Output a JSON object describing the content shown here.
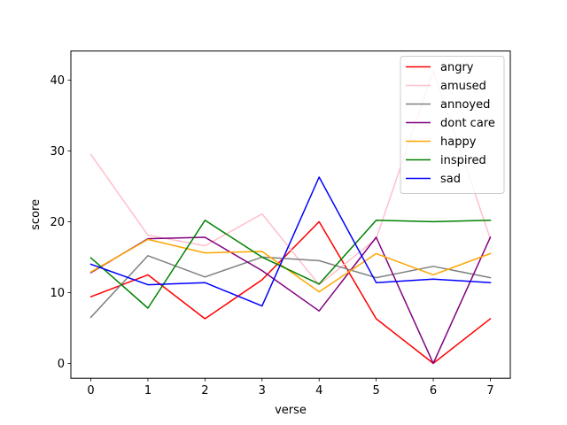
{
  "chart_data": {
    "type": "line",
    "title": "",
    "xlabel": "verse",
    "ylabel": "score",
    "x": [
      0,
      1,
      2,
      3,
      4,
      5,
      6,
      7
    ],
    "xlim": [
      -0.35,
      7.35
    ],
    "ylim": [
      -2.1,
      44.1
    ],
    "xticks": [
      0,
      1,
      2,
      3,
      4,
      5,
      6,
      7
    ],
    "yticks": [
      0,
      10,
      20,
      30,
      40
    ],
    "grid": false,
    "legend_position": "top-right",
    "series": [
      {
        "name": "angry",
        "color": "#ff0000",
        "values": [
          9.4,
          12.5,
          6.3,
          11.8,
          20.0,
          6.3,
          0.0,
          6.3
        ]
      },
      {
        "name": "amused",
        "color": "#ffc0cb",
        "values": [
          29.5,
          18.1,
          16.6,
          21.1,
          11.1,
          17.6,
          41.3,
          17.6
        ]
      },
      {
        "name": "annoyed",
        "color": "#808080",
        "values": [
          6.5,
          15.2,
          12.2,
          15.0,
          14.5,
          12.1,
          13.7,
          12.1
        ]
      },
      {
        "name": "dont care",
        "color": "#800080",
        "values": [
          12.8,
          17.6,
          17.8,
          13.1,
          7.4,
          17.8,
          0.0,
          17.8
        ]
      },
      {
        "name": "happy",
        "color": "#ffa500",
        "values": [
          12.9,
          17.5,
          15.6,
          15.8,
          10.1,
          15.5,
          12.5,
          15.5
        ]
      },
      {
        "name": "inspired",
        "color": "#008000",
        "values": [
          14.9,
          7.8,
          20.2,
          15.0,
          11.2,
          20.2,
          20.0,
          20.2
        ]
      },
      {
        "name": "sad",
        "color": "#0000ff",
        "values": [
          14.0,
          11.1,
          11.4,
          8.1,
          26.3,
          11.4,
          11.9,
          11.4
        ]
      }
    ]
  }
}
